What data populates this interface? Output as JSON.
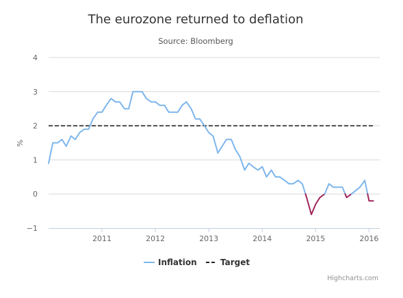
{
  "chart_data": {
    "type": "line",
    "title": "The eurozone returned to deflation",
    "subtitle": "Source: Bloomberg",
    "ylabel": "%",
    "xlabel": "",
    "ylim": [
      -1,
      4
    ],
    "yticks": [
      -1,
      0,
      1,
      2,
      3,
      4
    ],
    "xlim": [
      2010.0,
      2016.2
    ],
    "xticks": [
      2011,
      2012,
      2013,
      2014,
      2015,
      2016
    ],
    "grid": "horizontal",
    "legend": "bottom-center",
    "credits": "Highcharts.com",
    "series": [
      {
        "name": "Inflation",
        "color": "#7cb5ec",
        "negative_color": "#a0245a",
        "x": [
          2010.0,
          2010.08,
          2010.17,
          2010.25,
          2010.33,
          2010.42,
          2010.5,
          2010.58,
          2010.67,
          2010.75,
          2010.83,
          2010.92,
          2011.0,
          2011.08,
          2011.17,
          2011.25,
          2011.33,
          2011.42,
          2011.5,
          2011.58,
          2011.67,
          2011.75,
          2011.83,
          2011.92,
          2012.0,
          2012.08,
          2012.17,
          2012.25,
          2012.33,
          2012.42,
          2012.5,
          2012.58,
          2012.67,
          2012.75,
          2012.83,
          2012.92,
          2013.0,
          2013.08,
          2013.17,
          2013.25,
          2013.33,
          2013.42,
          2013.5,
          2013.58,
          2013.67,
          2013.75,
          2013.83,
          2013.92,
          2014.0,
          2014.08,
          2014.17,
          2014.25,
          2014.33,
          2014.42,
          2014.5,
          2014.58,
          2014.67,
          2014.75,
          2014.83,
          2014.92,
          2015.0,
          2015.08,
          2015.17,
          2015.25,
          2015.33,
          2015.42,
          2015.5,
          2015.58,
          2015.67,
          2015.75,
          2015.83,
          2015.92,
          2016.0,
          2016.08
        ],
        "y": [
          0.9,
          1.5,
          1.5,
          1.6,
          1.4,
          1.7,
          1.6,
          1.8,
          1.9,
          1.9,
          2.2,
          2.4,
          2.4,
          2.6,
          2.8,
          2.7,
          2.7,
          2.5,
          2.5,
          3.0,
          3.0,
          3.0,
          2.8,
          2.7,
          2.7,
          2.6,
          2.6,
          2.4,
          2.4,
          2.4,
          2.6,
          2.7,
          2.5,
          2.2,
          2.2,
          2.0,
          1.8,
          1.7,
          1.2,
          1.4,
          1.6,
          1.6,
          1.3,
          1.1,
          0.7,
          0.9,
          0.8,
          0.7,
          0.8,
          0.5,
          0.7,
          0.5,
          0.5,
          0.4,
          0.3,
          0.3,
          0.4,
          0.3,
          -0.1,
          -0.6,
          -0.3,
          -0.1,
          0.0,
          0.3,
          0.2,
          0.2,
          0.2,
          -0.1,
          0.0,
          0.1,
          0.2,
          0.4,
          -0.2,
          -0.2
        ]
      },
      {
        "name": "Target",
        "color": "#222222",
        "dash": "dashed",
        "x": [
          2010.0,
          2016.1
        ],
        "y": [
          2,
          2
        ]
      }
    ]
  }
}
